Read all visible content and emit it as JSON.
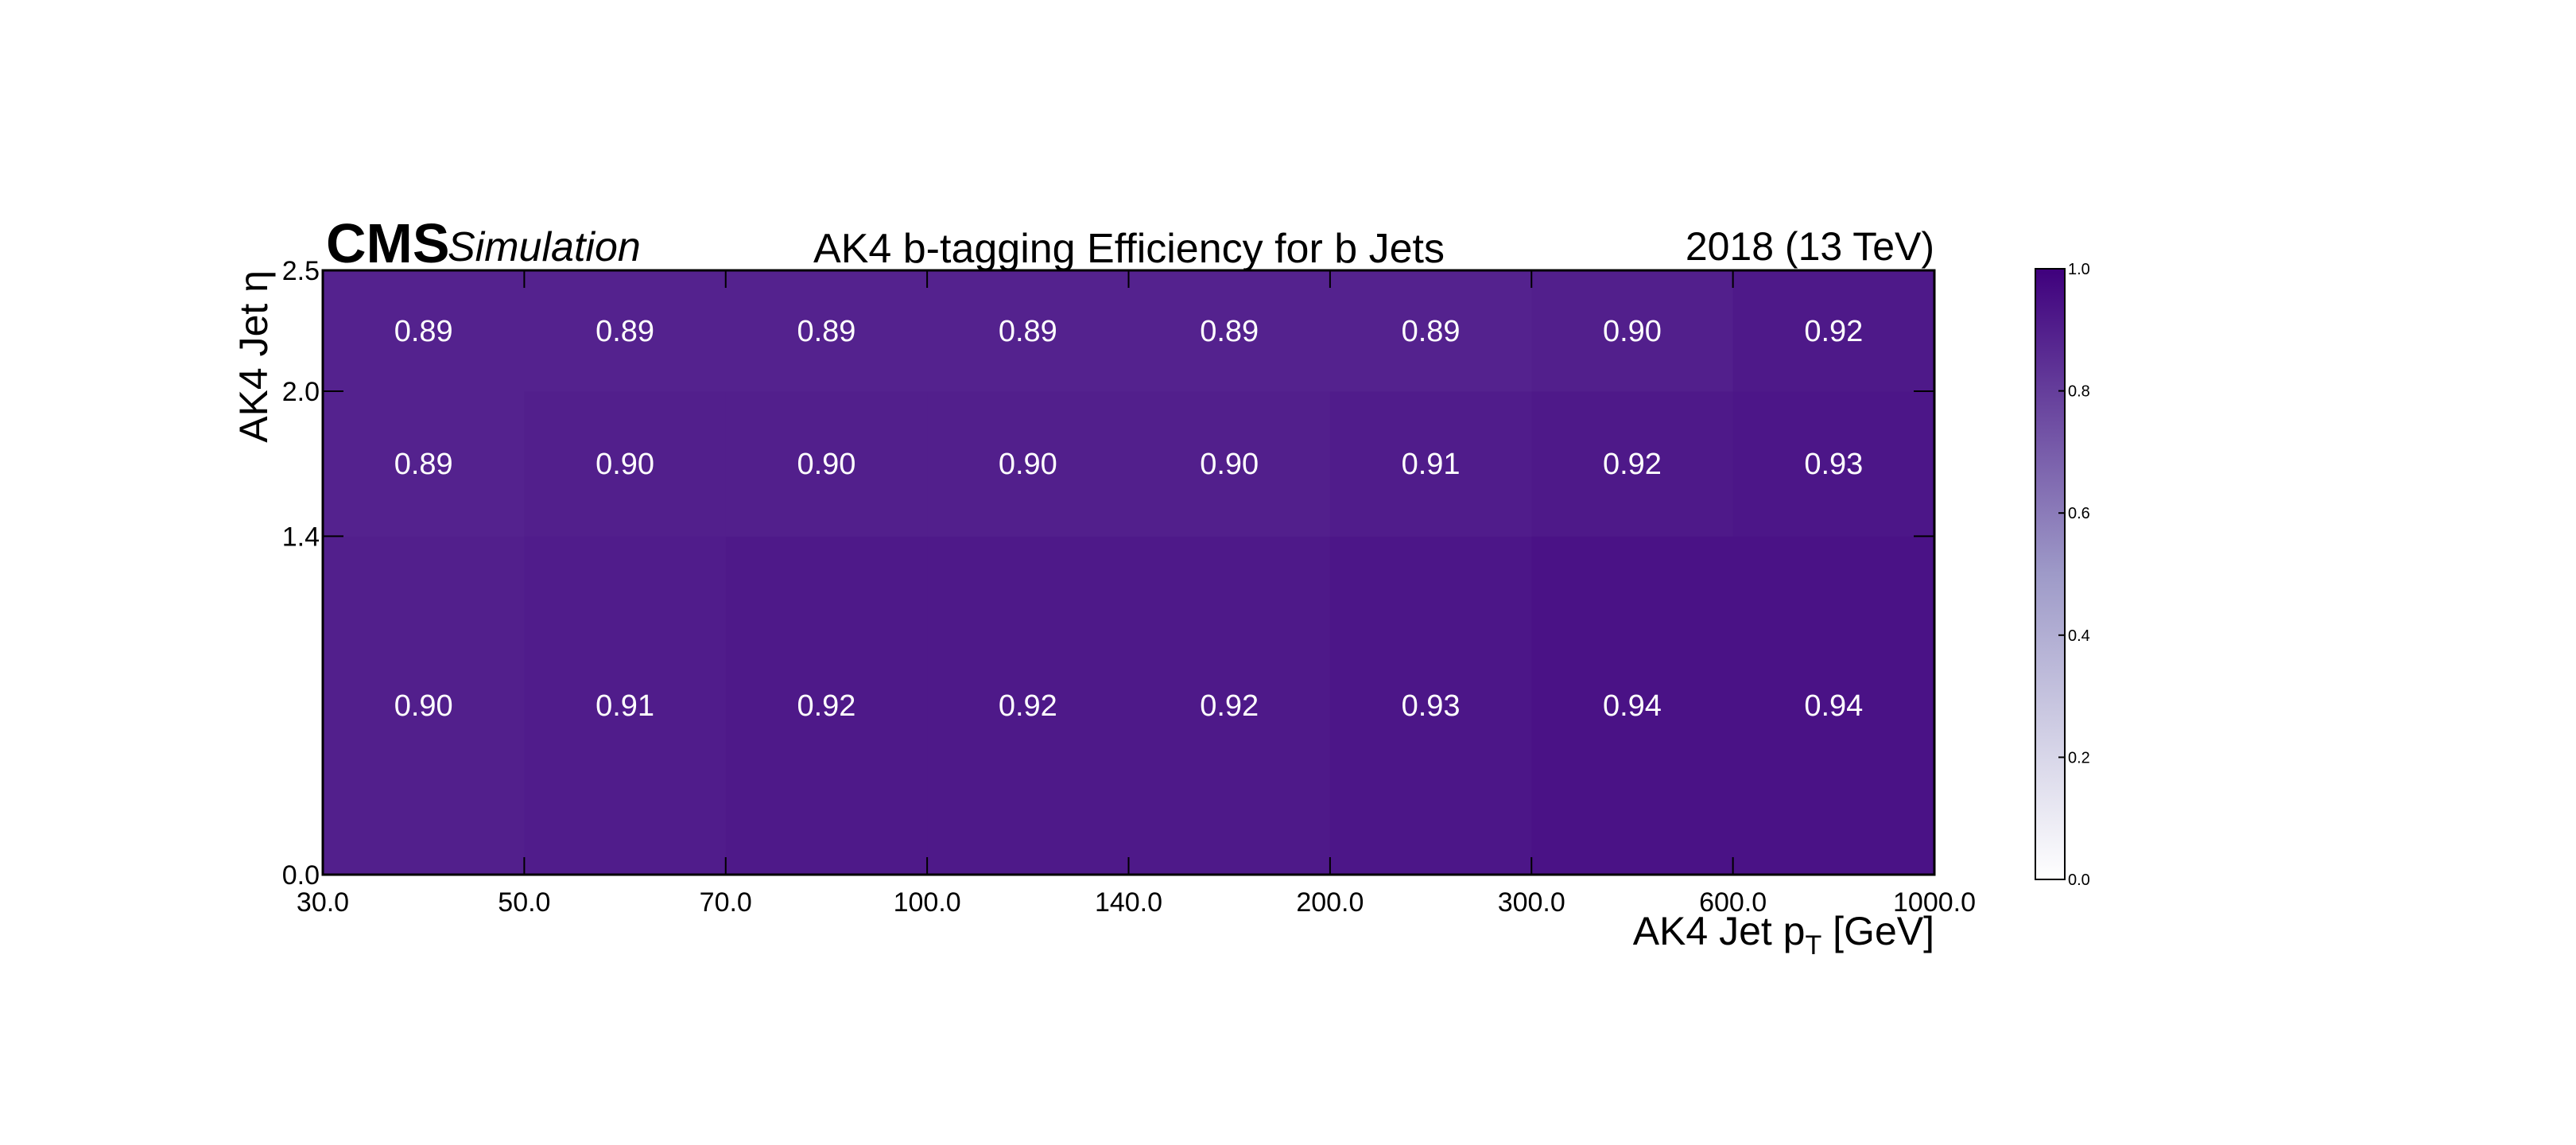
{
  "header": {
    "cms": "CMS",
    "simulation": "Simulation",
    "title": "AK4 b-tagging Efficiency for b Jets",
    "lumi": "2018 (13 TeV)"
  },
  "chart_data": {
    "type": "heatmap",
    "title": "AK4 b-tagging Efficiency for b Jets",
    "xlabel": "AK4 Jet pT [GeV]",
    "xlabel_parts": {
      "main": "AK4 Jet p",
      "sub": "T",
      "unit": " [GeV]"
    },
    "ylabel": "AK4 Jet η",
    "x_bin_edges": [
      30.0,
      50.0,
      70.0,
      100.0,
      140.0,
      200.0,
      300.0,
      600.0,
      1000.0
    ],
    "x_tick_labels": [
      "30.0",
      "50.0",
      "70.0",
      "100.0",
      "140.0",
      "200.0",
      "300.0",
      "600.0",
      "1000.0"
    ],
    "y_bin_edges": [
      0.0,
      1.4,
      2.0,
      2.5
    ],
    "y_tick_labels": [
      "0.0",
      "1.4",
      "2.0",
      "2.5"
    ],
    "values": [
      [
        0.9,
        0.91,
        0.92,
        0.92,
        0.92,
        0.93,
        0.94,
        0.94
      ],
      [
        0.89,
        0.9,
        0.9,
        0.9,
        0.9,
        0.91,
        0.92,
        0.93
      ],
      [
        0.89,
        0.89,
        0.89,
        0.89,
        0.89,
        0.89,
        0.9,
        0.92
      ]
    ],
    "value_labels": [
      [
        "0.90",
        "0.91",
        "0.92",
        "0.92",
        "0.92",
        "0.93",
        "0.94",
        "0.94"
      ],
      [
        "0.89",
        "0.90",
        "0.90",
        "0.90",
        "0.90",
        "0.91",
        "0.92",
        "0.93"
      ],
      [
        "0.89",
        "0.89",
        "0.89",
        "0.89",
        "0.89",
        "0.89",
        "0.90",
        "0.92"
      ]
    ],
    "colorbar": {
      "range": [
        0.0,
        1.0
      ],
      "tick_labels": [
        "0.0",
        "0.2",
        "0.4",
        "0.6",
        "0.8",
        "1.0"
      ],
      "color_low": "#ffffff",
      "color_high": "#3f007d"
    },
    "grid": false,
    "legend": "none"
  }
}
